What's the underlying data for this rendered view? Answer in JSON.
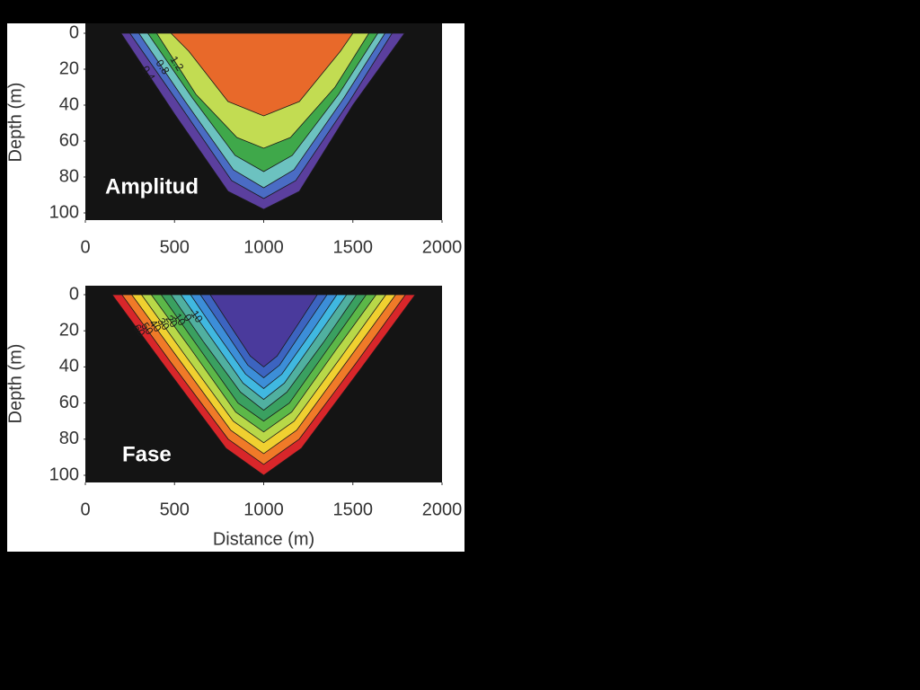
{
  "chart_data": [
    {
      "type": "contour",
      "panel_label": "Amplitud",
      "y_label": "Depth (m)",
      "xlim": [
        0,
        2000
      ],
      "xticks": [
        0,
        500,
        1000,
        1500,
        2000
      ],
      "ylim": [
        0,
        100
      ],
      "yticks": [
        0,
        20,
        40,
        60,
        80,
        100
      ],
      "y_inverted": true,
      "series": [
        {
          "level": 0.4,
          "color": "#5b3f9e",
          "x": [
            200,
            500,
            800,
            1000,
            1200,
            1500,
            1790
          ],
          "y": [
            0,
            45,
            88,
            98,
            88,
            40,
            0
          ]
        },
        {
          "color": "#4a6cc4",
          "x": [
            250,
            530,
            820,
            1000,
            1180,
            1480,
            1720
          ],
          "y": [
            0,
            40,
            82,
            92,
            82,
            38,
            0
          ]
        },
        {
          "level": 0.8,
          "color": "#6cc2c0",
          "x": [
            300,
            560,
            830,
            1000,
            1170,
            1450,
            1680
          ],
          "y": [
            0,
            38,
            76,
            86,
            76,
            36,
            0
          ]
        },
        {
          "color": "#3fa84a",
          "x": [
            350,
            600,
            840,
            1000,
            1160,
            1420,
            1640
          ],
          "y": [
            0,
            36,
            68,
            77,
            68,
            34,
            0
          ]
        },
        {
          "level": 1.2,
          "color": "#c2dc52",
          "x": [
            400,
            620,
            850,
            1000,
            1150,
            1400,
            1590
          ],
          "y": [
            0,
            34,
            58,
            64,
            58,
            30,
            0
          ]
        },
        {
          "color": "#e8692a",
          "x": [
            480,
            580,
            800,
            1000,
            1200,
            1430,
            1500
          ],
          "y": [
            0,
            10,
            38,
            46,
            38,
            10,
            0
          ]
        }
      ]
    },
    {
      "type": "contour",
      "panel_label": "Fase",
      "y_label": "Depth (m)",
      "x_label": "Distance (m)",
      "xlim": [
        0,
        2000
      ],
      "xticks": [
        0,
        500,
        1000,
        1500,
        2000
      ],
      "ylim": [
        0,
        100
      ],
      "yticks": [
        0,
        20,
        40,
        60,
        80,
        100
      ],
      "y_inverted": true,
      "series": [
        {
          "level": 60,
          "color": "#d8262a",
          "x": [
            150,
            448,
            788,
            1000,
            1212,
            1552,
            1850
          ],
          "y": [
            0,
            40,
            85,
            100,
            85,
            40,
            0
          ]
        },
        {
          "level": 50,
          "color": "#f07a28",
          "x": [
            205,
            483,
            801,
            1000,
            1199,
            1517,
            1795
          ],
          "y": [
            0,
            38,
            80,
            94,
            80,
            38,
            0
          ]
        },
        {
          "level": 40,
          "color": "#f0d030",
          "x": [
            260,
            519,
            815,
            1000,
            1185,
            1481,
            1740
          ],
          "y": [
            0,
            35,
            75,
            88,
            75,
            35,
            0
          ]
        },
        {
          "level": 30,
          "color": "#b8d848",
          "x": [
            315,
            555,
            829,
            1000,
            1171,
            1445,
            1685
          ],
          "y": [
            0,
            33,
            70,
            82,
            70,
            33,
            0
          ]
        },
        {
          "level": 20,
          "color": "#5cb848",
          "x": [
            370,
            591,
            843,
            1000,
            1157,
            1409,
            1630
          ],
          "y": [
            0,
            30,
            65,
            76,
            65,
            30,
            0
          ]
        },
        {
          "level": 10,
          "color": "#3aa060",
          "x": [
            425,
            626,
            856,
            1000,
            1144,
            1374,
            1575
          ],
          "y": [
            0,
            28,
            60,
            70,
            60,
            28,
            0
          ]
        },
        {
          "level": 0,
          "color": "#50b0a0",
          "x": [
            480,
            662,
            870,
            1000,
            1130,
            1338,
            1520
          ],
          "y": [
            0,
            26,
            54,
            64,
            54,
            26,
            0
          ]
        },
        {
          "level": -10,
          "color": "#40b8e0",
          "x": [
            535,
            698,
            884,
            1000,
            1116,
            1302,
            1465
          ],
          "y": [
            0,
            23,
            49,
            58,
            49,
            23,
            0
          ]
        },
        {
          "color": "#3c8ed8",
          "x": [
            590,
            734,
            898,
            1000,
            1102,
            1266,
            1410
          ],
          "y": [
            0,
            21,
            44,
            52,
            44,
            21,
            0
          ]
        },
        {
          "color": "#3c64c0",
          "x": [
            645,
            769,
            911,
            1000,
            1089,
            1231,
            1355
          ],
          "y": [
            0,
            18,
            39,
            46,
            39,
            18,
            0
          ]
        },
        {
          "color": "#4a3a9c",
          "x": [
            700,
            805,
            925,
            1000,
            1075,
            1195,
            1300
          ],
          "y": [
            0,
            16,
            34,
            40,
            34,
            16,
            0
          ]
        }
      ]
    }
  ]
}
